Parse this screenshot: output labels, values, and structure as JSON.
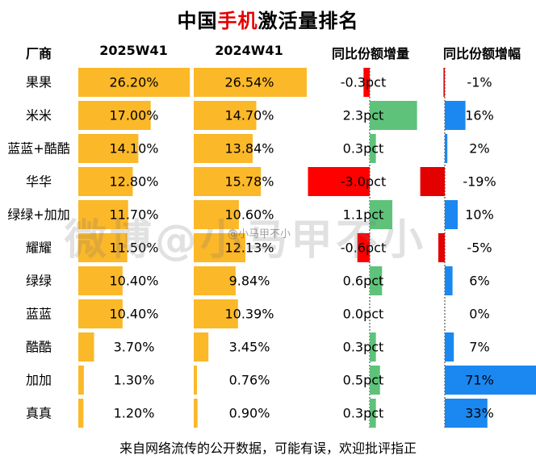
{
  "title_parts": [
    "中国",
    "手机",
    "激活量排名"
  ],
  "chart_data": {
    "type": "table",
    "title": "中国手机激活量排名",
    "columns": [
      "厂商",
      "2025W41",
      "2024W41",
      "同比份额增量",
      "同比份额增幅"
    ],
    "rows": [
      {
        "vendor": "果果",
        "share_2025": 26.2,
        "share_2024": 26.54,
        "delta_pct": -0.3,
        "growth": -1,
        "label_2025": "26.20%",
        "label_2024": "26.54%",
        "label_delta": "-0.3pct",
        "label_growth": "-1%"
      },
      {
        "vendor": "米米",
        "share_2025": 17.0,
        "share_2024": 14.7,
        "delta_pct": 2.3,
        "growth": 16,
        "label_2025": "17.00%",
        "label_2024": "14.70%",
        "label_delta": "2.3pct",
        "label_growth": "16%"
      },
      {
        "vendor": "蓝蓝+酷酷",
        "share_2025": 14.1,
        "share_2024": 13.84,
        "delta_pct": 0.3,
        "growth": 2,
        "label_2025": "14.10%",
        "label_2024": "13.84%",
        "label_delta": "0.3pct",
        "label_growth": "2%"
      },
      {
        "vendor": "华华",
        "share_2025": 12.8,
        "share_2024": 15.78,
        "delta_pct": -3.0,
        "growth": -19,
        "label_2025": "12.80%",
        "label_2024": "15.78%",
        "label_delta": "-3.0pct",
        "label_growth": "-19%"
      },
      {
        "vendor": "绿绿+加加",
        "share_2025": 11.7,
        "share_2024": 10.6,
        "delta_pct": 1.1,
        "growth": 10,
        "label_2025": "11.70%",
        "label_2024": "10.60%",
        "label_delta": "1.1pct",
        "label_growth": "10%"
      },
      {
        "vendor": "耀耀",
        "share_2025": 11.5,
        "share_2024": 12.13,
        "delta_pct": -0.6,
        "growth": -5,
        "label_2025": "11.50%",
        "label_2024": "12.13%",
        "label_delta": "-0.6pct",
        "label_growth": "-5%"
      },
      {
        "vendor": "绿绿",
        "share_2025": 10.4,
        "share_2024": 9.84,
        "delta_pct": 0.6,
        "growth": 6,
        "label_2025": "10.40%",
        "label_2024": "9.84%",
        "label_delta": "0.6pct",
        "label_growth": "6%"
      },
      {
        "vendor": "蓝蓝",
        "share_2025": 10.4,
        "share_2024": 10.39,
        "delta_pct": 0.0,
        "growth": 0,
        "label_2025": "10.40%",
        "label_2024": "10.39%",
        "label_delta": "0.0pct",
        "label_growth": "0%"
      },
      {
        "vendor": "酷酷",
        "share_2025": 3.7,
        "share_2024": 3.45,
        "delta_pct": 0.3,
        "growth": 7,
        "label_2025": "3.70%",
        "label_2024": "3.45%",
        "label_delta": "0.3pct",
        "label_growth": "7%"
      },
      {
        "vendor": "加加",
        "share_2025": 1.3,
        "share_2024": 0.76,
        "delta_pct": 0.5,
        "growth": 71,
        "label_2025": "1.30%",
        "label_2024": "0.76%",
        "label_delta": "0.5pct",
        "label_growth": "71%"
      },
      {
        "vendor": "真真",
        "share_2025": 1.2,
        "share_2024": 0.9,
        "delta_pct": 0.3,
        "growth": 33,
        "label_2025": "1.20%",
        "label_2024": "0.90%",
        "label_delta": "0.3pct",
        "label_growth": "33%"
      }
    ]
  },
  "watermark": "微博@小马甲不小",
  "watermark_small": "@小马甲不小",
  "footer": "来自网络流传的公开数据，可能有误，欢迎批评指正",
  "colors": {
    "share_bar": "#fbb829",
    "delta_pos": "#5ec27a",
    "delta_neg": "#ff0000",
    "growth_pos": "#1a88f0",
    "growth_neg": "#e30000"
  }
}
